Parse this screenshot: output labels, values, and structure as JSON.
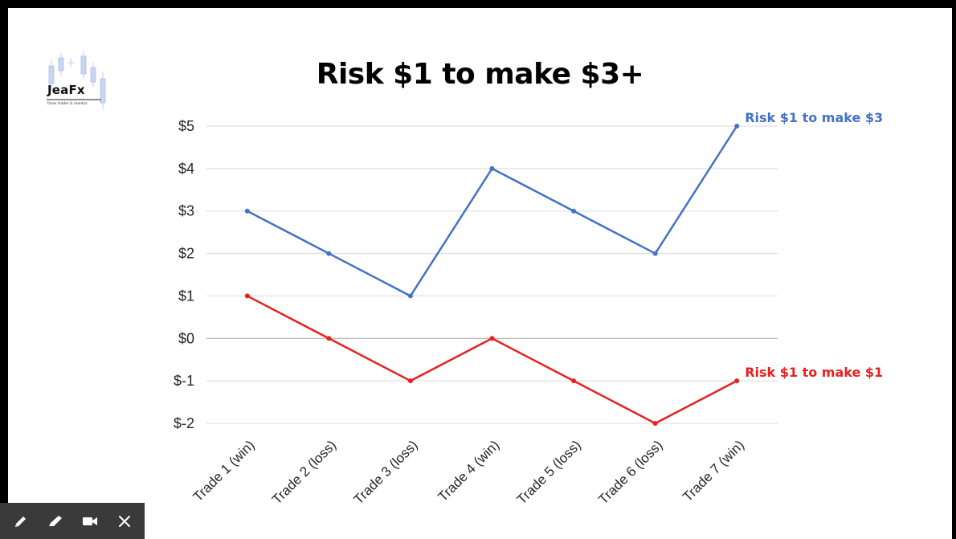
{
  "slide": {
    "title": "Risk $1 to make $3+",
    "logo": {
      "name": "JeaFx",
      "tagline": "forex trader & mentor."
    }
  },
  "chart_data": {
    "type": "line",
    "categories": [
      "Trade 1 (win)",
      "Trade 2 (loss)",
      "Trade 3 (loss)",
      "Trade 4 (win)",
      "Trade 5 (loss)",
      "Trade 6 (loss)",
      "Trade 7 (win)"
    ],
    "series": [
      {
        "name": "Risk $1 to make $3",
        "color": "#4472c4",
        "values": [
          3,
          2,
          1,
          4,
          3,
          2,
          5
        ]
      },
      {
        "name": "Risk $1 to make $1",
        "color": "#e8211f",
        "values": [
          1,
          0,
          -1,
          0,
          -1,
          -2,
          -1
        ]
      }
    ],
    "yticks": [
      5,
      4,
      3,
      2,
      1,
      0,
      -1,
      -2
    ],
    "ytick_labels": [
      "$5",
      "$4",
      "$3",
      "$2",
      "$1",
      "$0",
      "$-1",
      "$-2"
    ],
    "ylim": [
      -2,
      5
    ],
    "grid": true,
    "legend": "series labels at right end of lines"
  },
  "toolbar": {
    "tools": [
      {
        "icon": "pencil-icon"
      },
      {
        "icon": "highlighter-icon"
      },
      {
        "icon": "video-camera-icon"
      },
      {
        "icon": "close-icon"
      }
    ]
  }
}
